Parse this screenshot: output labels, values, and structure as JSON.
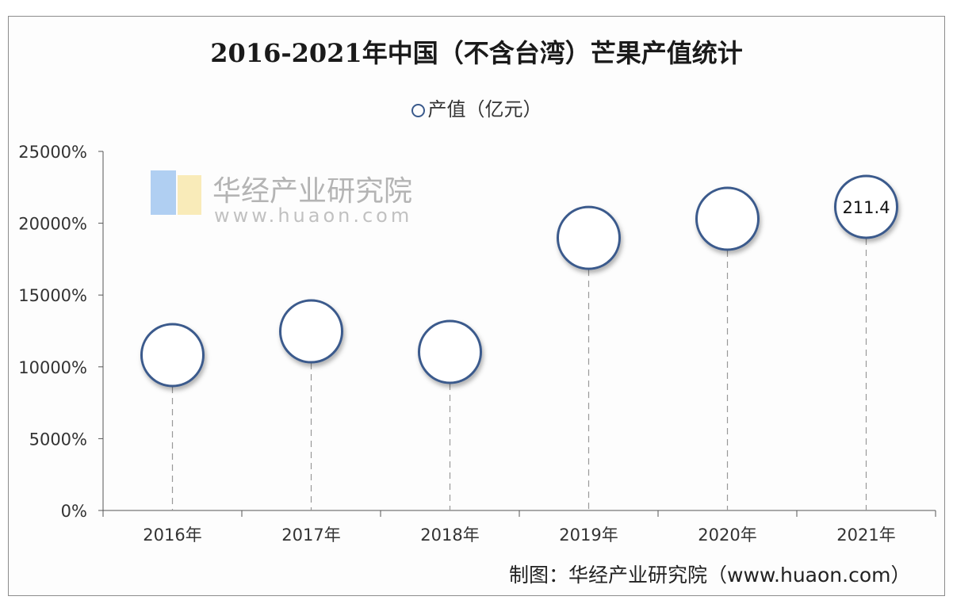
{
  "chart_data": {
    "type": "scatter",
    "title": "2016-2021年中国（不含台湾）芒果产值统计",
    "legend": {
      "label": "产值（亿元）",
      "position": "top"
    },
    "categories": [
      "2016年",
      "2017年",
      "2018年",
      "2019年",
      "2020年",
      "2021年"
    ],
    "series": [
      {
        "name": "产值（亿元）",
        "values": [
          108.2,
          124.7,
          110.4,
          189.8,
          203.1,
          211.4
        ]
      }
    ],
    "data_labels": [
      "",
      "",
      "",
      "",
      "",
      "211.4"
    ],
    "yticks": [
      "0%",
      "5000%",
      "10000%",
      "15000%",
      "20000%",
      "25000%"
    ],
    "ylim": [
      0,
      250
    ],
    "grid": false,
    "marker_color": "#3a5a8c"
  },
  "source": "制图：华经产业研究院（www.huaon.com）",
  "watermark": {
    "text": "华经产业研究院",
    "url": "www.huaon.com"
  }
}
